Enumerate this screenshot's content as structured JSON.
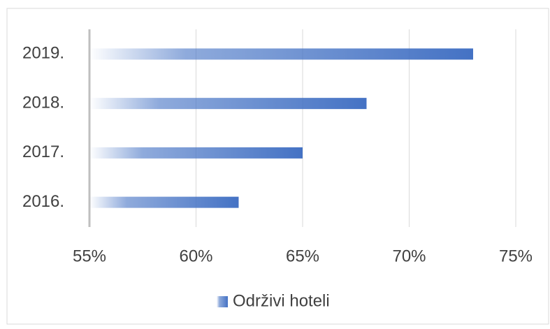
{
  "chart_data": {
    "type": "bar",
    "orientation": "horizontal",
    "categories": [
      "2016.",
      "2017.",
      "2018.",
      "2019."
    ],
    "series": [
      {
        "name": "Održivi hoteli",
        "color": "#4472c4",
        "values": [
          62,
          65,
          68,
          73
        ]
      }
    ],
    "xlim": [
      55,
      75
    ],
    "xticks": [
      {
        "value": 55,
        "label": "55%"
      },
      {
        "value": 60,
        "label": "60%"
      },
      {
        "value": 65,
        "label": "65%"
      },
      {
        "value": 70,
        "label": "70%"
      },
      {
        "value": 75,
        "label": "75%"
      }
    ],
    "grid": true,
    "legend": "bottom"
  }
}
